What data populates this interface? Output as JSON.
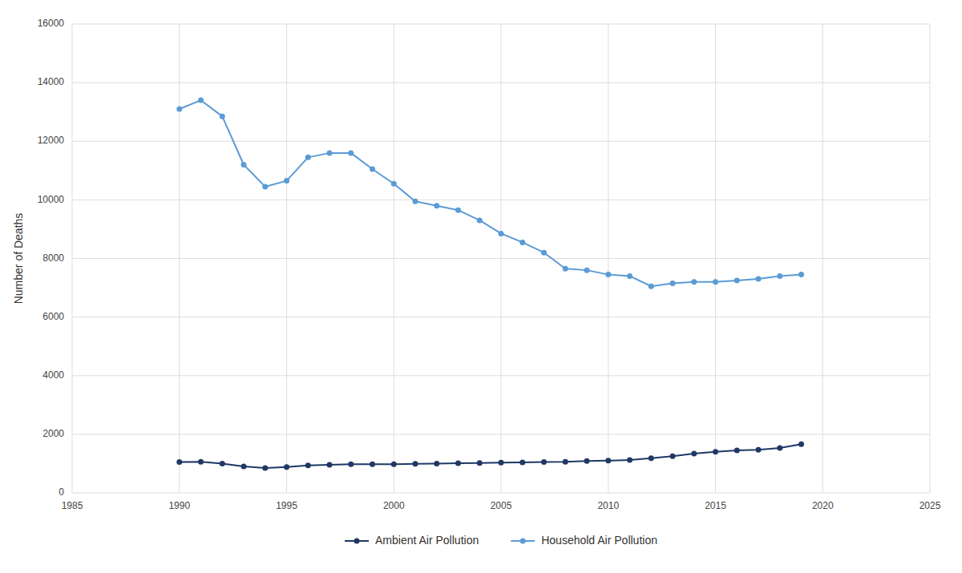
{
  "chart_data": {
    "type": "line",
    "y_label": "Number of Deaths",
    "x": [
      1990,
      1991,
      1992,
      1993,
      1994,
      1995,
      1996,
      1997,
      1998,
      1999,
      2000,
      2001,
      2002,
      2003,
      2004,
      2005,
      2006,
      2007,
      2008,
      2009,
      2010,
      2011,
      2012,
      2013,
      2014,
      2015,
      2016,
      2017,
      2018,
      2019
    ],
    "series": [
      {
        "name": "Ambient Air Pollution",
        "color": "#1F3864",
        "values": [
          1050,
          1060,
          1000,
          900,
          850,
          880,
          940,
          960,
          980,
          980,
          980,
          990,
          1000,
          1010,
          1020,
          1030,
          1040,
          1050,
          1060,
          1090,
          1100,
          1120,
          1180,
          1250,
          1340,
          1400,
          1450,
          1470,
          1530,
          1660
        ]
      },
      {
        "name": "Household Air Pollution",
        "color": "#5B9BD5",
        "values": [
          13100,
          13400,
          12850,
          11200,
          10450,
          10650,
          11450,
          11600,
          11600,
          11050,
          10550,
          9950,
          9800,
          9650,
          9300,
          8850,
          8550,
          8200,
          7650,
          7600,
          7450,
          7400,
          7050,
          7150,
          7200,
          7200,
          7250,
          7300,
          7400,
          7450
        ]
      }
    ],
    "marker": "circle",
    "xlim": [
      1985,
      2025
    ],
    "xticks": [
      1985,
      1990,
      1995,
      2000,
      2005,
      2010,
      2015,
      2020,
      2025
    ],
    "ylim": [
      0,
      16000
    ],
    "yticks": [
      0,
      2000,
      4000,
      6000,
      8000,
      10000,
      12000,
      14000,
      16000
    ],
    "grid": true,
    "legend": "bottom"
  }
}
